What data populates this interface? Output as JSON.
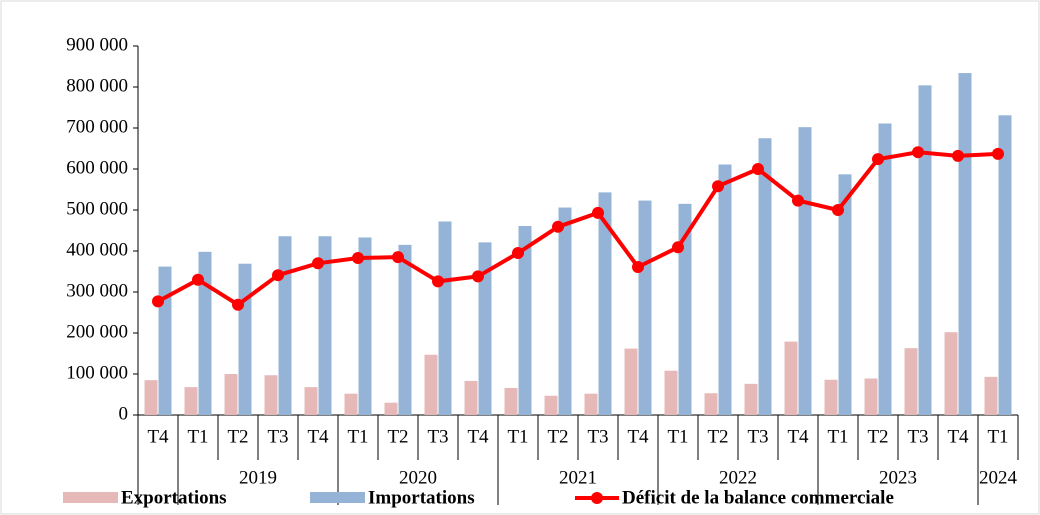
{
  "chart_data": {
    "type": "bar-line",
    "groups": [
      {
        "label": null,
        "categories": [
          "T4"
        ]
      },
      {
        "label": "2019",
        "categories": [
          "T1",
          "T2",
          "T3",
          "T4"
        ]
      },
      {
        "label": "2020",
        "categories": [
          "T1",
          "T2",
          "T3",
          "T4"
        ]
      },
      {
        "label": "2021",
        "categories": [
          "T1",
          "T2",
          "T3",
          "T4"
        ]
      },
      {
        "label": "2022",
        "categories": [
          "T1",
          "T2",
          "T3",
          "T4"
        ]
      },
      {
        "label": "2023",
        "categories": [
          "T1",
          "T2",
          "T3",
          "T4"
        ]
      },
      {
        "label": "2024",
        "categories": [
          "T1"
        ]
      }
    ],
    "series": [
      {
        "name": "Exportations",
        "kind": "bar",
        "color": "#e6b9b8",
        "values": [
          85000,
          68000,
          100000,
          97000,
          68000,
          52000,
          30000,
          147000,
          83000,
          66000,
          47000,
          52000,
          162000,
          108000,
          53000,
          76000,
          179000,
          86000,
          89000,
          163000,
          202000,
          93000
        ]
      },
      {
        "name": "Importations",
        "kind": "bar",
        "color": "#95b3d7",
        "values": [
          362000,
          398000,
          369000,
          436000,
          436000,
          433000,
          415000,
          472000,
          421000,
          461000,
          506000,
          543000,
          523000,
          515000,
          611000,
          675000,
          702000,
          587000,
          711000,
          804000,
          834000,
          731000
        ]
      },
      {
        "name": "Déficit de la balance commerciale",
        "kind": "line",
        "color": "#ff0000",
        "values": [
          277000,
          330000,
          269000,
          341000,
          370000,
          383000,
          385000,
          326000,
          338000,
          395000,
          459000,
          493000,
          361000,
          409000,
          558000,
          600000,
          523000,
          500000,
          624000,
          641000,
          632000,
          637000
        ]
      }
    ],
    "ylim": [
      0,
      900000
    ],
    "yticks": [
      0,
      {
        "value": 100000,
        "label": "100 000"
      },
      {
        "value": 200000,
        "label": "200 000"
      },
      {
        "value": 300000,
        "label": "300 000"
      },
      {
        "value": 400000,
        "label": "400 000"
      },
      {
        "value": 500000,
        "label": "500 000"
      },
      {
        "value": 600000,
        "label": "600 000"
      },
      {
        "value": 700000,
        "label": "700 000"
      },
      {
        "value": 800000,
        "label": "800 000"
      },
      {
        "value": 900000,
        "label": "900 000"
      }
    ],
    "legend": "bottom"
  }
}
